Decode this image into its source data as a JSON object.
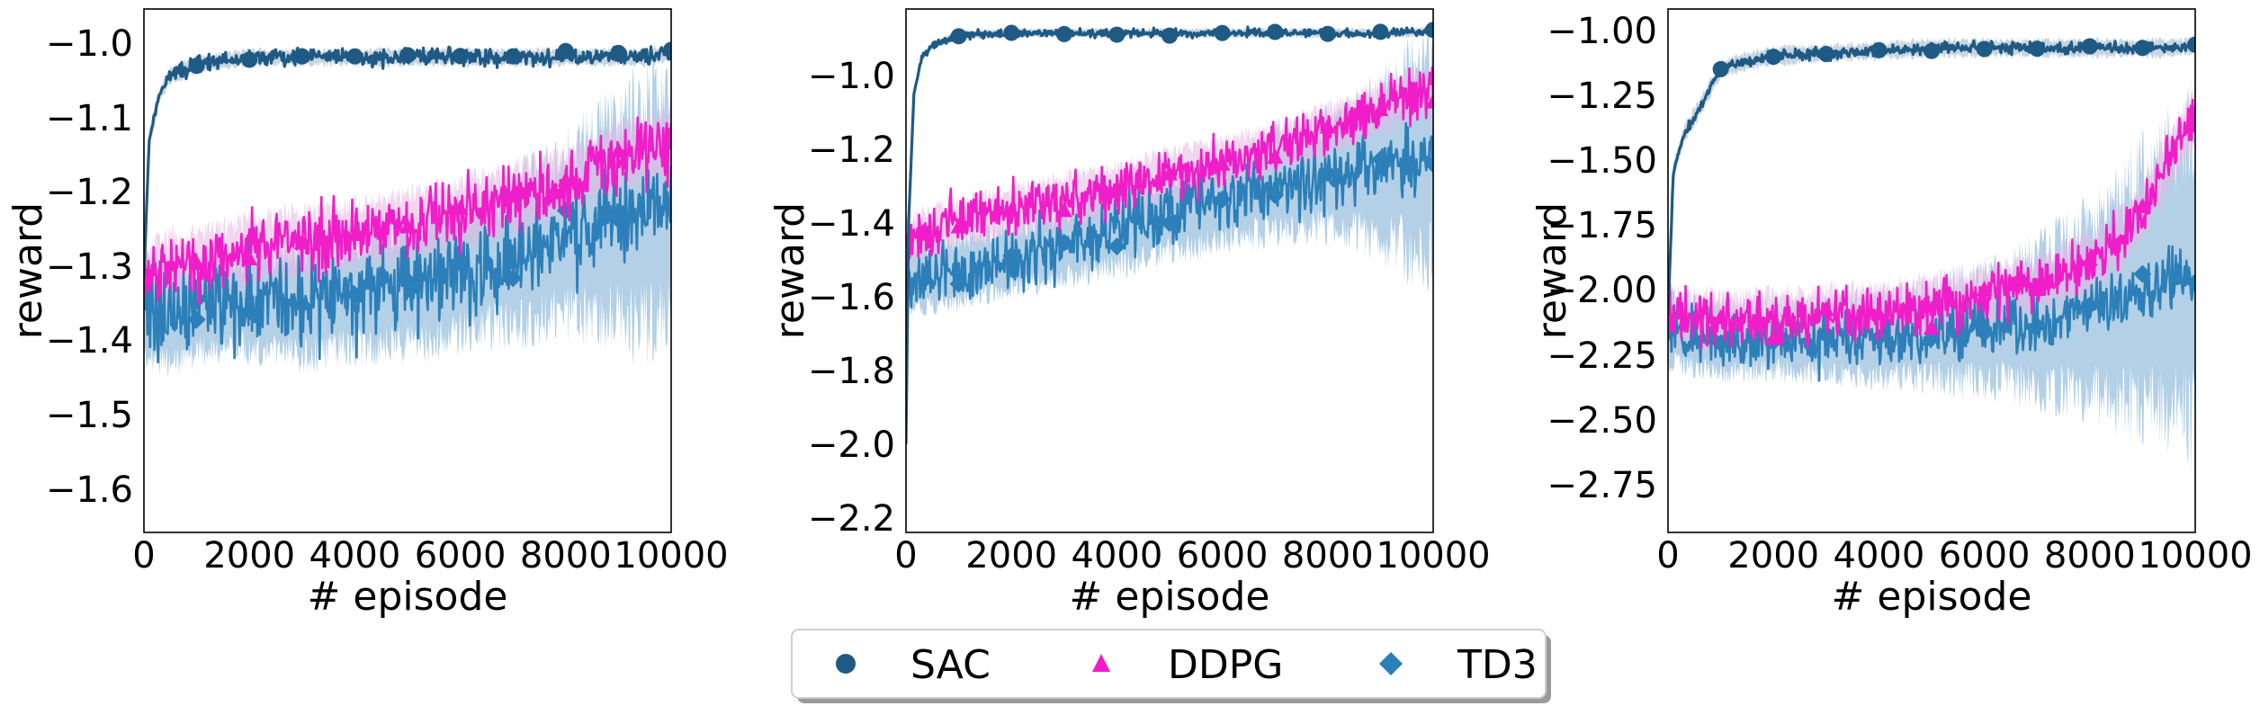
{
  "colors": {
    "SAC": "#1f5a85",
    "SAC_band": "#9bb3c8",
    "DDPG": "#f01ec8",
    "DDPG_band": "#e8b4e4",
    "TD3": "#2c7fb8",
    "TD3_band": "#a6c8e2",
    "axis": "#000000"
  },
  "legend": {
    "placement": "bottom-center",
    "items": [
      {
        "label": "SAC",
        "marker": "circle",
        "color": "#1f5a85"
      },
      {
        "label": "DDPG",
        "marker": "triangle",
        "color": "#f01ec8"
      },
      {
        "label": "TD3",
        "marker": "diamond",
        "color": "#2c7fb8"
      }
    ]
  },
  "chart_data": [
    {
      "type": "line",
      "xlabel": "# episode",
      "ylabel": "reward",
      "xlim": [
        0,
        10000
      ],
      "ylim": [
        -1.66,
        -0.955
      ],
      "xticks": [
        "0",
        "2000",
        "4000",
        "6000",
        "8000",
        "10000"
      ],
      "yticks": [
        -1.6,
        -1.5,
        -1.4,
        -1.3,
        -1.2,
        -1.1,
        -1.0
      ],
      "ytick_labels": [
        "−1.6",
        "−1.5",
        "−1.4",
        "−1.3",
        "−1.2",
        "−1.1",
        "−1.0"
      ],
      "x": [
        0,
        100,
        300,
        500,
        1000,
        1500,
        2000,
        3000,
        4000,
        5000,
        6000,
        7000,
        8000,
        8500,
        9000,
        9500,
        10000
      ],
      "series": [
        {
          "name": "SAC",
          "mean": [
            -1.32,
            -1.13,
            -1.07,
            -1.045,
            -1.03,
            -1.025,
            -1.02,
            -1.02,
            -1.02,
            -1.02,
            -1.02,
            -1.02,
            -1.02,
            -1.02,
            -1.02,
            -1.02,
            -1.015
          ],
          "noise": 0.008,
          "band": 0.01
        },
        {
          "name": "DDPG",
          "mean": [
            -1.32,
            -1.31,
            -1.31,
            -1.3,
            -1.3,
            -1.29,
            -1.28,
            -1.27,
            -1.26,
            -1.245,
            -1.23,
            -1.21,
            -1.19,
            -1.17,
            -1.155,
            -1.145,
            -1.14
          ],
          "noise": 0.03,
          "band": 0.04
        },
        {
          "name": "TD3",
          "mean": [
            -1.36,
            -1.36,
            -1.37,
            -1.37,
            -1.36,
            -1.35,
            -1.35,
            -1.35,
            -1.34,
            -1.33,
            -1.31,
            -1.29,
            -1.26,
            -1.245,
            -1.235,
            -1.23,
            -1.22
          ],
          "noise": 0.045,
          "band": [
            0.06,
            0.06,
            0.06,
            0.06,
            0.06,
            0.06,
            0.06,
            0.07,
            0.07,
            0.08,
            0.08,
            0.09,
            0.11,
            0.12,
            0.14,
            0.15,
            0.16
          ]
        }
      ]
    },
    {
      "type": "line",
      "xlabel": "# episode",
      "ylabel": "reward",
      "xlim": [
        0,
        10000
      ],
      "ylim": [
        -2.24,
        -0.82
      ],
      "xticks": [
        "0",
        "2000",
        "4000",
        "6000",
        "8000",
        "10000"
      ],
      "yticks": [
        -2.2,
        -2.0,
        -1.8,
        -1.6,
        -1.4,
        -1.2,
        -1.0
      ],
      "ytick_labels": [
        "−2.2",
        "−2.0",
        "−1.8",
        "−1.6",
        "−1.4",
        "−1.2",
        "−1.0"
      ],
      "x": [
        0,
        50,
        150,
        300,
        500,
        1000,
        2000,
        3000,
        4000,
        5000,
        6000,
        7000,
        8000,
        8500,
        9000,
        9500,
        10000
      ],
      "series": [
        {
          "name": "SAC",
          "mean": [
            -2.0,
            -1.4,
            -1.05,
            -0.95,
            -0.92,
            -0.89,
            -0.885,
            -0.885,
            -0.885,
            -0.885,
            -0.885,
            -0.885,
            -0.885,
            -0.885,
            -0.885,
            -0.885,
            -0.88
          ],
          "noise": 0.008,
          "band": 0.01
        },
        {
          "name": "DDPG",
          "mean": [
            -1.45,
            -1.45,
            -1.44,
            -1.43,
            -1.42,
            -1.4,
            -1.37,
            -1.34,
            -1.31,
            -1.27,
            -1.24,
            -1.2,
            -1.15,
            -1.12,
            -1.09,
            -1.06,
            -1.04
          ],
          "noise": 0.05,
          "band": 0.06
        },
        {
          "name": "TD3",
          "mean": [
            -1.56,
            -1.56,
            -1.55,
            -1.55,
            -1.54,
            -1.53,
            -1.5,
            -1.46,
            -1.42,
            -1.38,
            -1.34,
            -1.3,
            -1.27,
            -1.26,
            -1.245,
            -1.235,
            -1.23
          ],
          "noise": 0.06,
          "band": [
            0.08,
            0.08,
            0.08,
            0.08,
            0.08,
            0.08,
            0.08,
            0.09,
            0.1,
            0.1,
            0.11,
            0.12,
            0.14,
            0.16,
            0.2,
            0.24,
            0.27
          ]
        }
      ]
    },
    {
      "type": "line",
      "xlabel": "# episode",
      "ylabel": "reward",
      "xlim": [
        0,
        10000
      ],
      "ylim": [
        -2.93,
        -0.92
      ],
      "xticks": [
        "0",
        "2000",
        "4000",
        "6000",
        "8000",
        "10000"
      ],
      "yticks": [
        -2.75,
        -2.5,
        -2.25,
        -2.0,
        -1.75,
        -1.5,
        -1.25,
        -1.0
      ],
      "ytick_labels": [
        "−2.75",
        "−2.50",
        "−2.25",
        "−2.00",
        "−1.75",
        "−1.50",
        "−1.25",
        "−1.00"
      ],
      "x": [
        0,
        100,
        300,
        600,
        1000,
        1500,
        2000,
        3000,
        4000,
        5000,
        6000,
        7000,
        8000,
        8500,
        9000,
        9500,
        10000
      ],
      "series": [
        {
          "name": "SAC",
          "mean": [
            -2.1,
            -1.55,
            -1.4,
            -1.3,
            -1.15,
            -1.12,
            -1.1,
            -1.09,
            -1.08,
            -1.07,
            -1.07,
            -1.07,
            -1.07,
            -1.07,
            -1.07,
            -1.07,
            -1.06
          ],
          "noise": 0.015,
          "band": 0.03
        },
        {
          "name": "DDPG",
          "mean": [
            -2.1,
            -2.1,
            -2.12,
            -2.12,
            -2.12,
            -2.12,
            -2.12,
            -2.1,
            -2.09,
            -2.06,
            -2.03,
            -1.98,
            -1.9,
            -1.82,
            -1.7,
            -1.5,
            -1.33
          ],
          "noise": 0.07,
          "band": 0.1
        },
        {
          "name": "TD3",
          "mean": [
            -2.15,
            -2.15,
            -2.17,
            -2.18,
            -2.19,
            -2.19,
            -2.19,
            -2.19,
            -2.18,
            -2.17,
            -2.15,
            -2.12,
            -2.07,
            -2.04,
            -1.99,
            -1.96,
            -1.94
          ],
          "noise": 0.08,
          "band": [
            0.12,
            0.12,
            0.12,
            0.12,
            0.12,
            0.12,
            0.12,
            0.13,
            0.15,
            0.17,
            0.2,
            0.25,
            0.32,
            0.38,
            0.45,
            0.52,
            0.58
          ]
        }
      ]
    }
  ]
}
